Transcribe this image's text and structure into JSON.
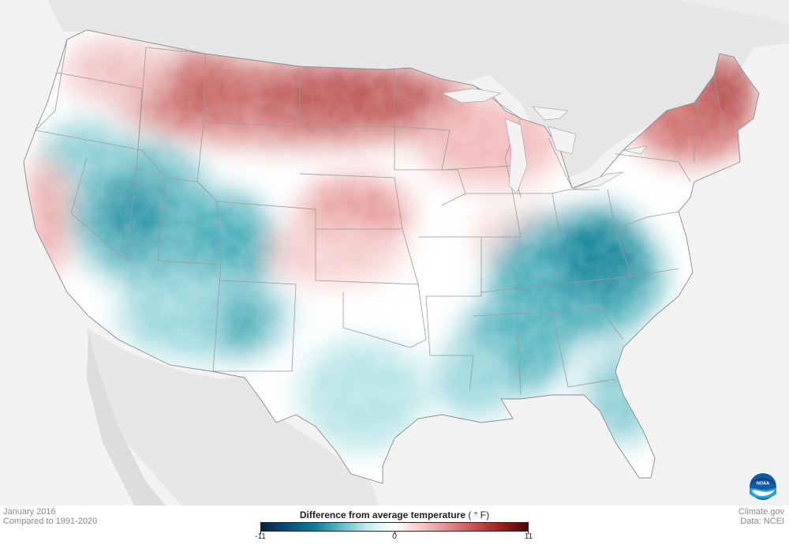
{
  "footer": {
    "date": "January 2016",
    "baseline": "Compared to 1991-2020",
    "site": "Climate.gov",
    "source": "Data: NCEI"
  },
  "legend": {
    "title": "Difference from average temperature",
    "unit": "( ° F)",
    "min_label": "-11",
    "mid_label": "0",
    "max_label": "11",
    "scale": {
      "min": -11,
      "max": 11,
      "colors": [
        "#06233f",
        "#0a4f7a",
        "#0b7f97",
        "#5bbcc6",
        "#c6ecef",
        "#ffffff",
        "#f5c9c9",
        "#e38a8a",
        "#c8504f",
        "#9a1f1e",
        "#4a0505"
      ]
    }
  },
  "logo": {
    "text": "NOAA",
    "icon": "noaa-logo-icon"
  },
  "colors": {
    "ocean": "#f2f2f2",
    "neighbor_land": "#e4e4e4",
    "state_border": "#8f8f8f",
    "warm_max": "#9a1f1e",
    "cold_max": "#0a5d7a"
  },
  "anomaly_regions": {
    "northeast": "warm",
    "northern_plains": "warm",
    "upper_midwest": "warm",
    "pacific_coast": "warm",
    "central_plains": "warm",
    "great_basin": "cold",
    "rockies": "cold",
    "southeast": "cold",
    "ohio_valley_appalachians": "cold",
    "gulf_coast": "cold",
    "texas": "cold",
    "southwest": "cold"
  }
}
